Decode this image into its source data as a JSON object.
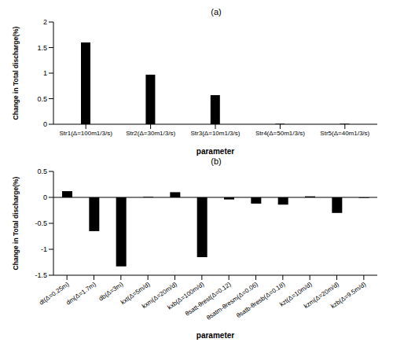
{
  "chart_data": [
    {
      "type": "bar",
      "title": "(a)",
      "x_label": "parameter",
      "y_label": "Change in Total discharge(%)",
      "categories": [
        "Str1(Δ=100m1/3/s)",
        "Str2(Δ=30m1/3/s)",
        "Str3(Δ=10m1/3/s)",
        "Str4(Δ=50m1/3/s)",
        "Str5(Δ=40m1/3/s)"
      ],
      "values": [
        1.6,
        0.97,
        0.57,
        0.01,
        0.01
      ],
      "color": "#000000",
      "ylim": [
        0,
        2
      ],
      "yticks": [
        0,
        0.5,
        1,
        1.5,
        2
      ],
      "grid": false
    },
    {
      "type": "bar",
      "title": "(b)",
      "x_label": "parameter",
      "y_label": "Change in Total discharge(%)",
      "categories": [
        "dt(Δ=0.25m)",
        "dm(Δ=1.7m)",
        "db(Δ=3m)",
        "kxt(Δ=5m/d)",
        "kxm(Δ=20m/d)",
        "kxb(Δ=100m/d)",
        "θsatt-θrest(Δ=0.12)",
        "θsatm-θresm(Δ=0.06)",
        "θsatb-θresb(Δ=0.18)",
        "kzt(Δ=10m/d)",
        "kzm(Δ=20m/d)",
        "kzb(Δ=9.5m/d)"
      ],
      "values": [
        0.12,
        -0.65,
        -1.33,
        0.01,
        0.1,
        -1.15,
        -0.04,
        -0.12,
        -0.14,
        0.02,
        -0.3,
        -0.01
      ],
      "color": "#000000",
      "ylim": [
        -1.5,
        0.5
      ],
      "yticks": [
        -1.5,
        -1,
        -0.5,
        0,
        0.5
      ],
      "grid": false
    }
  ]
}
